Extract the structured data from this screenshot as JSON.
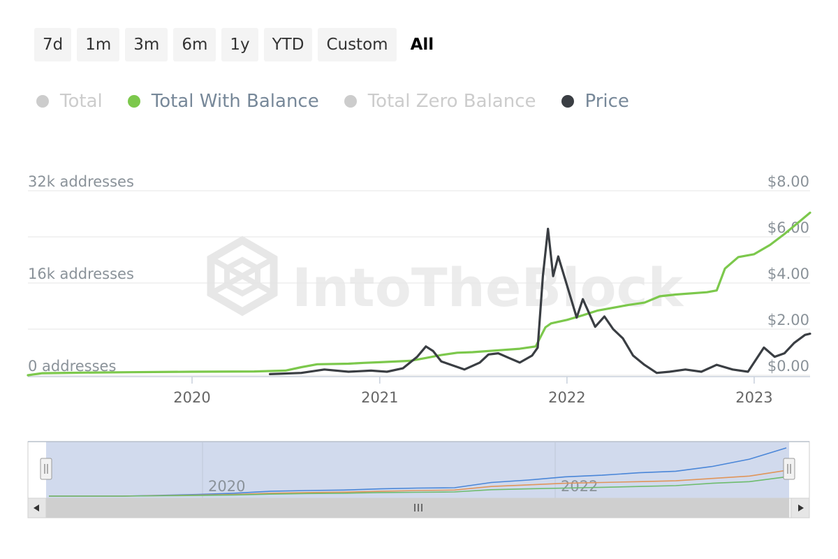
{
  "range_buttons": [
    "7d",
    "1m",
    "3m",
    "6m",
    "1y",
    "YTD",
    "Custom",
    "All"
  ],
  "active_range": "All",
  "colors": {
    "green": "#7cc84c",
    "price": "#3a3e43",
    "hidden": "#cccccc",
    "legend_text": "#778899",
    "axis_text": "#8a9299",
    "grid": "#e6e6e6",
    "navigator_mask": "rgba(102,133,194,0.3)",
    "nav_blue": "#4a86d8",
    "nav_orange": "#e0955a",
    "nav_green": "#6ebc6e"
  },
  "legend": [
    {
      "label": "Total",
      "visible": false
    },
    {
      "label": "Total With Balance",
      "visible": true,
      "color": "#7cc84c"
    },
    {
      "label": "Total Zero Balance",
      "visible": false
    },
    {
      "label": "Price",
      "visible": true,
      "color": "#3a3e43"
    }
  ],
  "watermark": "IntoTheBlock",
  "chart_data": {
    "type": "line",
    "x_ticks": [
      "2020",
      "2021",
      "2022",
      "2023"
    ],
    "y_left_ticks": [
      "0 addresses",
      "16k addresses",
      "32k addresses"
    ],
    "y_right_ticks": [
      "$0.00",
      "$2.00",
      "$4.00",
      "$6.00",
      "$8.00"
    ],
    "y_left_range": [
      0,
      32000
    ],
    "y_right_range": [
      0,
      8
    ],
    "x_range": [
      "2019-02-15",
      "2023-04-20"
    ],
    "series": [
      {
        "name": "Total With Balance",
        "axis": "left",
        "points": [
          [
            "2019-02-15",
            0
          ],
          [
            "2019-03-15",
            350
          ],
          [
            "2019-06-01",
            450
          ],
          [
            "2019-09-01",
            520
          ],
          [
            "2020-01-01",
            600
          ],
          [
            "2020-05-01",
            650
          ],
          [
            "2020-07-01",
            800
          ],
          [
            "2020-08-01",
            1400
          ],
          [
            "2020-09-01",
            1900
          ],
          [
            "2020-11-01",
            2000
          ],
          [
            "2020-12-01",
            2150
          ],
          [
            "2021-01-01",
            2250
          ],
          [
            "2021-03-01",
            2500
          ],
          [
            "2021-04-01",
            3000
          ],
          [
            "2021-05-01",
            3500
          ],
          [
            "2021-06-01",
            3900
          ],
          [
            "2021-07-01",
            4000
          ],
          [
            "2021-09-01",
            4400
          ],
          [
            "2021-10-01",
            4600
          ],
          [
            "2021-11-01",
            5000
          ],
          [
            "2021-11-20",
            8300
          ],
          [
            "2021-12-01",
            9000
          ],
          [
            "2022-01-01",
            9600
          ],
          [
            "2022-02-01",
            10400
          ],
          [
            "2022-03-01",
            11200
          ],
          [
            "2022-05-01",
            12200
          ],
          [
            "2022-06-01",
            12600
          ],
          [
            "2022-07-01",
            13700
          ],
          [
            "2022-08-01",
            14000
          ],
          [
            "2022-10-01",
            14400
          ],
          [
            "2022-10-20",
            14700
          ],
          [
            "2022-11-05",
            18500
          ],
          [
            "2022-12-01",
            20500
          ],
          [
            "2023-01-01",
            21000
          ],
          [
            "2023-02-01",
            22600
          ],
          [
            "2023-03-01",
            24500
          ],
          [
            "2023-04-20",
            28200
          ]
        ]
      },
      {
        "name": "Price",
        "axis": "right",
        "points": [
          [
            "2020-06-01",
            0.05
          ],
          [
            "2020-08-01",
            0.1
          ],
          [
            "2020-09-15",
            0.25
          ],
          [
            "2020-11-01",
            0.15
          ],
          [
            "2020-12-15",
            0.2
          ],
          [
            "2021-01-15",
            0.15
          ],
          [
            "2021-02-15",
            0.3
          ],
          [
            "2021-03-15",
            0.8
          ],
          [
            "2021-04-01",
            1.25
          ],
          [
            "2021-04-15",
            1.05
          ],
          [
            "2021-05-01",
            0.6
          ],
          [
            "2021-05-20",
            0.45
          ],
          [
            "2021-06-15",
            0.25
          ],
          [
            "2021-07-15",
            0.55
          ],
          [
            "2021-08-01",
            0.9
          ],
          [
            "2021-08-20",
            0.95
          ],
          [
            "2021-09-10",
            0.75
          ],
          [
            "2021-10-01",
            0.55
          ],
          [
            "2021-10-25",
            0.85
          ],
          [
            "2021-11-05",
            1.2
          ],
          [
            "2021-11-15",
            4.3
          ],
          [
            "2021-11-25",
            6.35
          ],
          [
            "2021-12-05",
            4.3
          ],
          [
            "2021-12-15",
            5.15
          ],
          [
            "2022-01-01",
            3.9
          ],
          [
            "2022-01-20",
            2.5
          ],
          [
            "2022-02-01",
            3.3
          ],
          [
            "2022-02-25",
            2.1
          ],
          [
            "2022-03-15",
            2.55
          ],
          [
            "2022-04-01",
            2.0
          ],
          [
            "2022-04-20",
            1.6
          ],
          [
            "2022-05-10",
            0.85
          ],
          [
            "2022-06-01",
            0.45
          ],
          [
            "2022-06-25",
            0.1
          ],
          [
            "2022-07-20",
            0.15
          ],
          [
            "2022-08-20",
            0.25
          ],
          [
            "2022-09-20",
            0.15
          ],
          [
            "2022-10-20",
            0.45
          ],
          [
            "2022-11-20",
            0.25
          ],
          [
            "2022-12-20",
            0.15
          ],
          [
            "2023-01-20",
            1.2
          ],
          [
            "2023-02-10",
            0.8
          ],
          [
            "2023-03-01",
            0.95
          ],
          [
            "2023-03-20",
            1.4
          ],
          [
            "2023-04-10",
            1.75
          ],
          [
            "2023-04-20",
            1.8
          ]
        ]
      }
    ],
    "navigator": {
      "x_labels": [
        "2020",
        "2022"
      ],
      "series": [
        {
          "color": "blue",
          "values": [
            0,
            0,
            0,
            0.05,
            0.1,
            0.18,
            0.3,
            0.35,
            0.38,
            0.45,
            0.5,
            0.52,
            0.85,
            1.0,
            1.2,
            1.3,
            1.45,
            1.55,
            1.85,
            2.3,
            3.0
          ]
        },
        {
          "color": "orange",
          "values": [
            0,
            0,
            0,
            0.03,
            0.06,
            0.1,
            0.18,
            0.22,
            0.25,
            0.3,
            0.35,
            0.38,
            0.6,
            0.7,
            0.8,
            0.85,
            0.9,
            0.95,
            1.1,
            1.25,
            1.6
          ]
        },
        {
          "color": "green",
          "values": [
            0,
            0,
            0,
            0.02,
            0.04,
            0.07,
            0.12,
            0.16,
            0.18,
            0.22,
            0.24,
            0.26,
            0.4,
            0.45,
            0.5,
            0.55,
            0.6,
            0.65,
            0.8,
            0.9,
            1.2
          ]
        }
      ]
    }
  }
}
